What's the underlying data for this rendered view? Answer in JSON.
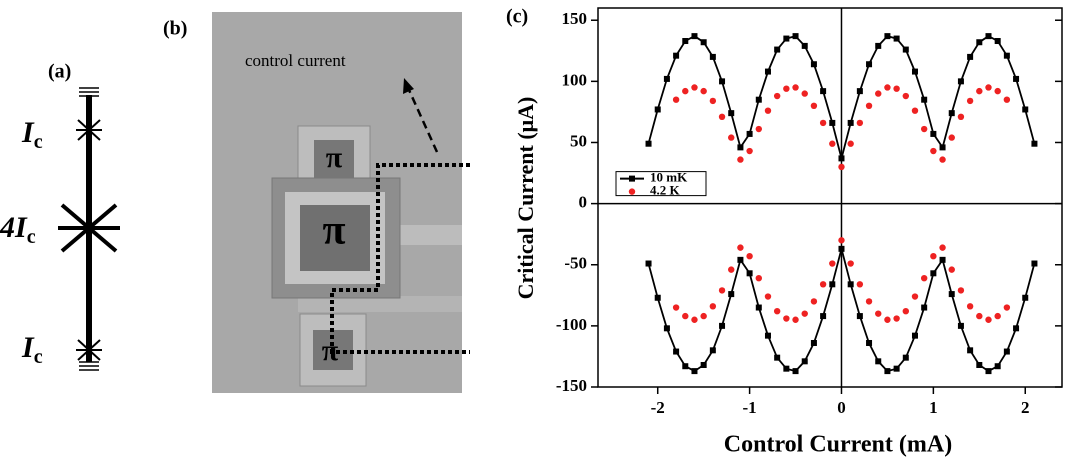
{
  "panel_a": {
    "label": "(a)",
    "junctions": [
      {
        "symbol": "I",
        "subscript": "c"
      },
      {
        "symbol": "4I",
        "subscript": "c"
      },
      {
        "symbol": "I",
        "subscript": "c"
      }
    ]
  },
  "panel_b": {
    "label": "(b)",
    "annotation": "control current",
    "junction_labels": [
      "π",
      "π",
      "π"
    ]
  },
  "chart_data": {
    "type": "line",
    "panel_label": "(c)",
    "x_label": "Control Current (mA)",
    "y_label": "Critical Current (μA)",
    "xlim": [
      -2.65,
      2.4
    ],
    "ylim": [
      -150,
      160
    ],
    "xticks": [
      -2,
      -1,
      0,
      1,
      2
    ],
    "yticks": [
      -150,
      -100,
      -50,
      0,
      50,
      100,
      150
    ],
    "zero_lines": true,
    "legend": "left",
    "series": [
      {
        "name": "10 mK",
        "color": "#000000",
        "marker": "square",
        "line": true,
        "x": [
          -2.1,
          -2.0,
          -1.9,
          -1.8,
          -1.7,
          -1.6,
          -1.5,
          -1.4,
          -1.3,
          -1.2,
          -1.1,
          -1.0,
          -0.9,
          -0.8,
          -0.7,
          -0.6,
          -0.5,
          -0.4,
          -0.3,
          -0.2,
          -0.1,
          0,
          0.1,
          0.2,
          0.3,
          0.4,
          0.5,
          0.6,
          0.7,
          0.8,
          0.9,
          1.0,
          1.1,
          1.2,
          1.3,
          1.4,
          1.5,
          1.6,
          1.7,
          1.8,
          1.9,
          2.0,
          2.1,
          null,
          -2.1,
          -2.0,
          -1.9,
          -1.8,
          -1.7,
          -1.6,
          -1.5,
          -1.4,
          -1.3,
          -1.2,
          -1.1,
          -1.0,
          -0.9,
          -0.8,
          -0.7,
          -0.6,
          -0.5,
          -0.4,
          -0.3,
          -0.2,
          -0.1,
          0,
          0.1,
          0.2,
          0.3,
          0.4,
          0.5,
          0.6,
          0.7,
          0.8,
          0.9,
          1.0,
          1.1,
          1.2,
          1.3,
          1.4,
          1.5,
          1.6,
          1.7,
          1.8,
          1.9,
          2.0,
          2.1
        ],
        "values": [
          49,
          77,
          102,
          121,
          133,
          137,
          132,
          120,
          100,
          74,
          46,
          57,
          85,
          108,
          126,
          135,
          137,
          129,
          114,
          92,
          66,
          37,
          66,
          92,
          114,
          129,
          137,
          135,
          126,
          108,
          85,
          57,
          46,
          74,
          100,
          120,
          132,
          137,
          133,
          121,
          102,
          77,
          49,
          null,
          -49,
          -77,
          -102,
          -121,
          -133,
          -137,
          -132,
          -120,
          -100,
          -74,
          -46,
          -57,
          -85,
          -108,
          -126,
          -135,
          -137,
          -129,
          -114,
          -92,
          -66,
          -37,
          -66,
          -92,
          -114,
          -129,
          -137,
          -135,
          -126,
          -108,
          -85,
          -57,
          -46,
          -74,
          -100,
          -120,
          -132,
          -137,
          -133,
          -121,
          -102,
          -77,
          -49
        ]
      },
      {
        "name": "4.2 K",
        "color": "#ee2222",
        "marker": "circle",
        "line": false,
        "x": [
          -1.8,
          -1.7,
          -1.6,
          -1.5,
          -1.4,
          -1.3,
          -1.2,
          -1.1,
          -1.0,
          -0.9,
          -0.8,
          -0.7,
          -0.6,
          -0.5,
          -0.4,
          -0.3,
          -0.2,
          -0.1,
          0,
          0.1,
          0.2,
          0.3,
          0.4,
          0.5,
          0.6,
          0.7,
          0.8,
          0.9,
          1.0,
          1.1,
          1.2,
          1.3,
          1.4,
          1.5,
          1.6,
          1.7,
          1.8,
          null,
          -1.8,
          -1.7,
          -1.6,
          -1.5,
          -1.4,
          -1.3,
          -1.2,
          -1.1,
          -1.0,
          -0.9,
          -0.8,
          -0.7,
          -0.6,
          -0.5,
          -0.4,
          -0.3,
          -0.2,
          -0.1,
          0,
          0.1,
          0.2,
          0.3,
          0.4,
          0.5,
          0.6,
          0.7,
          0.8,
          0.9,
          1.0,
          1.1,
          1.2,
          1.3,
          1.4,
          1.5,
          1.6,
          1.7,
          1.8
        ],
        "values": [
          85,
          92,
          95,
          92,
          84,
          71,
          54,
          36,
          43,
          61,
          76,
          88,
          94,
          95,
          90,
          80,
          66,
          49,
          30,
          49,
          66,
          80,
          90,
          95,
          94,
          88,
          76,
          61,
          43,
          36,
          54,
          71,
          84,
          92,
          95,
          92,
          85,
          null,
          -85,
          -92,
          -95,
          -92,
          -84,
          -71,
          -54,
          -36,
          -43,
          -61,
          -76,
          -88,
          -94,
          -95,
          -90,
          -80,
          -66,
          -49,
          -30,
          -49,
          -66,
          -80,
          -90,
          -95,
          -94,
          -88,
          -76,
          -61,
          -43,
          -36,
          -54,
          -71,
          -84,
          -92,
          -95,
          -92,
          -85
        ]
      }
    ]
  }
}
